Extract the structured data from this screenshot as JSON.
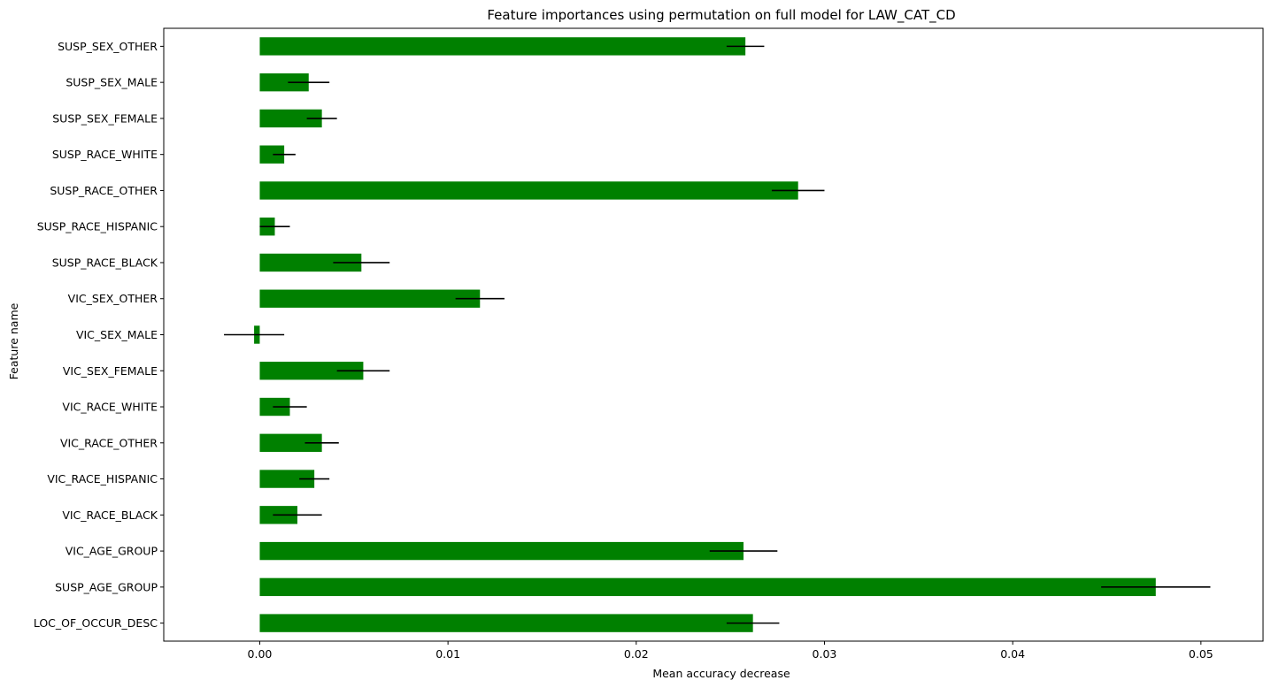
{
  "chart_data": {
    "type": "bar",
    "orientation": "horizontal",
    "title": "Feature importances using permutation on full model for LAW_CAT_CD",
    "xlabel": "Mean accuracy decrease",
    "ylabel": "Feature name",
    "xlim": [
      -0.0051,
      0.0533
    ],
    "xticks": [
      0.0,
      0.01,
      0.02,
      0.03,
      0.04,
      0.05
    ],
    "xtick_labels": [
      "0.00",
      "0.01",
      "0.02",
      "0.03",
      "0.04",
      "0.05"
    ],
    "bar_color": "#008000",
    "errorbar_color": "#000000",
    "grid": false,
    "categories": [
      "LOC_OF_OCCUR_DESC",
      "SUSP_AGE_GROUP",
      "VIC_AGE_GROUP",
      "VIC_RACE_BLACK",
      "VIC_RACE_HISPANIC",
      "VIC_RACE_OTHER",
      "VIC_RACE_WHITE",
      "VIC_SEX_FEMALE",
      "VIC_SEX_MALE",
      "VIC_SEX_OTHER",
      "SUSP_RACE_BLACK",
      "SUSP_RACE_HISPANIC",
      "SUSP_RACE_OTHER",
      "SUSP_RACE_WHITE",
      "SUSP_SEX_FEMALE",
      "SUSP_SEX_MALE",
      "SUSP_SEX_OTHER"
    ],
    "values": [
      0.0262,
      0.0476,
      0.0257,
      0.002,
      0.0029,
      0.0033,
      0.0016,
      0.0055,
      -0.0003,
      0.0117,
      0.0054,
      0.0008,
      0.0286,
      0.0013,
      0.0033,
      0.0026,
      0.0258
    ],
    "errors": [
      0.0014,
      0.0029,
      0.0018,
      0.0013,
      0.0008,
      0.0009,
      0.0009,
      0.0014,
      0.0016,
      0.0013,
      0.0015,
      0.0008,
      0.0014,
      0.0006,
      0.0008,
      0.0011,
      0.001
    ]
  }
}
